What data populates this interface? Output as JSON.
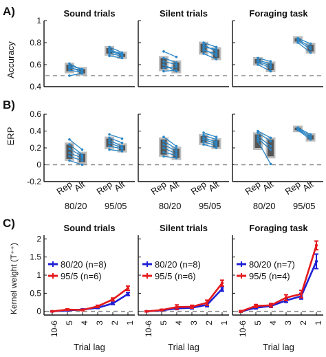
{
  "colors": {
    "ind_line": "#2a86c6",
    "box_dark": "#555555",
    "box_light": "#bdbdbd",
    "chance_line": "#8a8a8a",
    "s8020": "#1f1fd6",
    "s955": "#e41a1c",
    "axis": "#111111"
  },
  "panel_labels": [
    "A)",
    "B)",
    "C)"
  ],
  "columns": [
    "Sound trials",
    "Silent trials",
    "Foraging task"
  ],
  "chart_data": [
    {
      "type": "box",
      "id": "A",
      "ylabel": "Accuracy",
      "ylim": [
        0.4,
        1.0
      ],
      "yticks": [
        "1",
        "0.8",
        "0.6",
        "0.4"
      ],
      "reference_line": 0.5,
      "xtick_labels": [
        "Rep",
        "Alt",
        "Rep",
        "Alt"
      ],
      "group_labels": [
        "80/20",
        "95/05"
      ],
      "panels": [
        {
          "title": "Sound trials",
          "groups": [
            {
              "name": "80/20",
              "rep": [
                0.5,
                0.55,
                0.57,
                0.58,
                0.59,
                0.61
              ],
              "alt": [
                0.52,
                0.53,
                0.55,
                0.53,
                0.56,
                0.55
              ],
              "rep_box": [
                0.54,
                0.6
              ],
              "alt_box": [
                0.52,
                0.56
              ]
            },
            {
              "name": "95/05",
              "rep": [
                0.68,
                0.7,
                0.72,
                0.73,
                0.74,
                0.76
              ],
              "alt": [
                0.66,
                0.68,
                0.69,
                0.7,
                0.69,
                0.71
              ],
              "rep_box": [
                0.7,
                0.75
              ],
              "alt_box": [
                0.67,
                0.7
              ]
            }
          ]
        },
        {
          "title": "Silent trials",
          "groups": [
            {
              "name": "80/20",
              "rep": [
                0.54,
                0.57,
                0.6,
                0.63,
                0.66,
                0.72
              ],
              "alt": [
                0.55,
                0.58,
                0.54,
                0.6,
                0.62,
                0.67
              ],
              "rep_box": [
                0.56,
                0.66
              ],
              "alt_box": [
                0.54,
                0.62
              ]
            },
            {
              "name": "95/05",
              "rep": [
                0.7,
                0.73,
                0.74,
                0.76,
                0.78,
                0.8
              ],
              "alt": [
                0.65,
                0.7,
                0.68,
                0.74,
                0.72,
                0.76
              ],
              "rep_box": [
                0.71,
                0.79
              ],
              "alt_box": [
                0.66,
                0.74
              ]
            }
          ]
        },
        {
          "title": "Foraging task",
          "groups": [
            {
              "name": "80/20",
              "rep": [
                0.6,
                0.62,
                0.63,
                0.64,
                0.66
              ],
              "alt": [
                0.54,
                0.57,
                0.59,
                0.61,
                0.63
              ],
              "rep_box": [
                0.61,
                0.65
              ],
              "alt_box": [
                0.55,
                0.61
              ]
            },
            {
              "name": "95/05",
              "rep": [
                0.8,
                0.82,
                0.83,
                0.84
              ],
              "alt": [
                0.71,
                0.74,
                0.76,
                0.79
              ],
              "rep_box": [
                0.81,
                0.84
              ],
              "alt_box": [
                0.72,
                0.78
              ]
            }
          ]
        }
      ]
    },
    {
      "type": "box",
      "id": "B",
      "ylabel": "ERP",
      "ylim": [
        -0.2,
        0.6
      ],
      "yticks": [
        "0.6",
        "0.4",
        "0.2",
        "0",
        "-0.2"
      ],
      "reference_line": 0.0,
      "xtick_labels": [
        "Rep",
        "Alt",
        "Rep",
        "Alt"
      ],
      "group_labels": [
        "80/20",
        "95/05"
      ],
      "panels": [
        {
          "title": "Sound trials",
          "groups": [
            {
              "name": "80/20",
              "rep": [
                0.05,
                0.1,
                0.14,
                0.19,
                0.24,
                0.3
              ],
              "alt": [
                0.0,
                0.05,
                0.08,
                0.1,
                0.12,
                0.18
              ],
              "rep_box": [
                0.07,
                0.24
              ],
              "alt_box": [
                0.03,
                0.13
              ]
            },
            {
              "name": "95/05",
              "rep": [
                0.18,
                0.22,
                0.26,
                0.29,
                0.32,
                0.36
              ],
              "alt": [
                0.16,
                0.19,
                0.2,
                0.22,
                0.26,
                0.31
              ],
              "rep_box": [
                0.21,
                0.31
              ],
              "alt_box": [
                0.17,
                0.23
              ]
            }
          ]
        },
        {
          "title": "Silent trials",
          "groups": [
            {
              "name": "80/20",
              "rep": [
                0.1,
                0.15,
                0.2,
                0.24,
                0.28,
                0.33
              ],
              "alt": [
                0.08,
                0.11,
                0.13,
                0.16,
                0.19,
                0.22
              ],
              "rep_box": [
                0.12,
                0.3
              ],
              "alt_box": [
                0.08,
                0.19
              ]
            },
            {
              "name": "95/05",
              "rep": [
                0.24,
                0.27,
                0.3,
                0.32,
                0.35,
                0.38
              ],
              "alt": [
                0.2,
                0.23,
                0.25,
                0.27,
                0.3,
                0.33
              ],
              "rep_box": [
                0.26,
                0.34
              ],
              "alt_box": [
                0.21,
                0.29
              ]
            }
          ]
        },
        {
          "title": "Foraging task",
          "groups": [
            {
              "name": "80/20",
              "rep": [
                0.28,
                0.31,
                0.34,
                0.38,
                0.4
              ],
              "alt": [
                0.01,
                0.18,
                0.22,
                0.28,
                0.32
              ],
              "rep_box": [
                0.2,
                0.36
              ],
              "alt_box": [
                0.1,
                0.3
              ]
            },
            {
              "name": "95/05",
              "rep": [
                0.41,
                0.42,
                0.43,
                0.44
              ],
              "alt": [
                0.3,
                0.32,
                0.34,
                0.36
              ],
              "rep_box": [
                0.41,
                0.44
              ],
              "alt_box": [
                0.3,
                0.35
              ]
            }
          ]
        }
      ]
    },
    {
      "type": "line",
      "id": "C",
      "ylabel": "Kernel weight (T⁺⁺)",
      "xlabel": "Trial lag",
      "x": [
        "10-6",
        "5",
        "4",
        "3",
        "2",
        "1"
      ],
      "ylim": [
        -0.1,
        2.1
      ],
      "yticks": [
        "2",
        "1.5",
        "1",
        "0.5",
        "0"
      ],
      "reference_line": 0.0,
      "panels": [
        {
          "title": "Sound trials",
          "series": [
            {
              "name": "80/20 (n=8)",
              "color": "#1f1fd6",
              "values": [
                0.0,
                0.03,
                0.05,
                0.1,
                0.22,
                0.48
              ],
              "err": [
                0.01,
                0.02,
                0.02,
                0.02,
                0.03,
                0.04
              ]
            },
            {
              "name": "95/5 (n=6)",
              "color": "#e41a1c",
              "values": [
                0.0,
                0.05,
                0.04,
                0.14,
                0.33,
                0.64
              ],
              "err": [
                0.01,
                0.02,
                0.02,
                0.03,
                0.04,
                0.06
              ]
            }
          ]
        },
        {
          "title": "Silent trials",
          "series": [
            {
              "name": "80/20 (n=8)",
              "color": "#1f1fd6",
              "values": [
                0.0,
                0.03,
                0.08,
                0.1,
                0.18,
                0.62
              ],
              "err": [
                0.01,
                0.02,
                0.03,
                0.03,
                0.05,
                0.06
              ]
            },
            {
              "name": "95/5 (n=6)",
              "color": "#e41a1c",
              "values": [
                0.0,
                0.04,
                0.12,
                0.13,
                0.24,
                0.78
              ],
              "err": [
                0.01,
                0.02,
                0.06,
                0.04,
                0.07,
                0.08
              ]
            }
          ]
        },
        {
          "title": "Foraging task",
          "series": [
            {
              "name": "80/20 (n=7)",
              "color": "#1f1fd6",
              "values": [
                0.0,
                0.1,
                0.15,
                0.3,
                0.42,
                1.38
              ],
              "err": [
                0.02,
                0.03,
                0.04,
                0.05,
                0.08,
                0.2
              ]
            },
            {
              "name": "95/5 (n=4)",
              "color": "#e41a1c",
              "values": [
                0.0,
                0.15,
                0.17,
                0.38,
                0.48,
                1.82
              ],
              "err": [
                0.02,
                0.04,
                0.05,
                0.08,
                0.1,
                0.12
              ]
            }
          ]
        }
      ]
    }
  ]
}
